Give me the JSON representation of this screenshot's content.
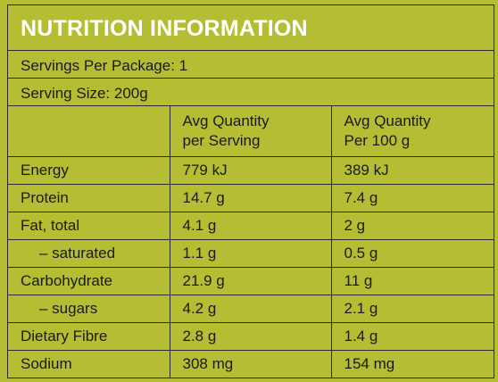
{
  "panel": {
    "title": "NUTRITION INFORMATION",
    "servings_per_package": "Servings Per Package: 1",
    "serving_size": "Serving Size: 200g"
  },
  "table": {
    "head_col2_line1": "Avg Quantity",
    "head_col2_line2": "per Serving",
    "head_col3_line1": "Avg Quantity",
    "head_col3_line2": "Per 100 g",
    "rows": [
      {
        "label": "Energy",
        "per_serving": "779 kJ",
        "per_100g": "389 kJ"
      },
      {
        "label": "Protein",
        "per_serving": "14.7 g",
        "per_100g": "7.4 g"
      },
      {
        "label": "Fat, total",
        "per_serving": "4.1 g",
        "per_100g": "2 g"
      },
      {
        "label": "– saturated",
        "per_serving": "1.1 g",
        "per_100g": "0.5 g"
      },
      {
        "label": "Carbohydrate",
        "per_serving": "21.9 g",
        "per_100g": "11 g"
      },
      {
        "label": "– sugars",
        "per_serving": "4.2 g",
        "per_100g": "2.1 g"
      },
      {
        "label": "Dietary Fibre",
        "per_serving": "2.8 g",
        "per_100g": "1.4 g"
      },
      {
        "label": "Sodium",
        "per_serving": "308 mg",
        "per_100g": "154 mg"
      }
    ]
  },
  "colors": {
    "background": "#b5bd33",
    "title_text": "#ffffff",
    "border": "#2a2a2a"
  }
}
